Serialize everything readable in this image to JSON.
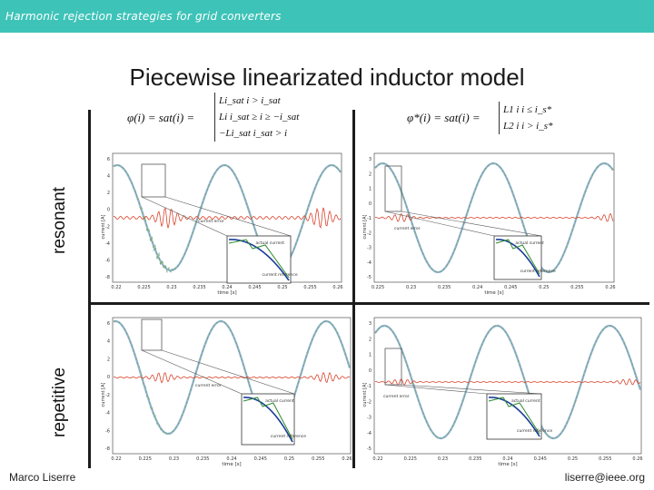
{
  "header": {
    "title": "Harmonic rejection strategies for grid converters"
  },
  "slide": {
    "title": "Piecewise linearizated inductor model"
  },
  "row_labels": {
    "top": "resonant",
    "bottom": "repetitive"
  },
  "formulas": {
    "left_lhs": "φ(i) = sat(i) =",
    "left_cases": [
      "Li_sat    i > i_sat",
      "Li    i_sat ≥ i ≥ −i_sat",
      "−Li_sat    i_sat > i"
    ],
    "right_lhs": "φ*(i) = sat(i) =",
    "right_cases": [
      "L1 i    i ≤ i_s*",
      "L2 i    i > i_s*"
    ]
  },
  "plots": {
    "ylabel": "current [A]",
    "xlabel": "time [s]",
    "annotations": {
      "current_error": "current error",
      "actual_current": "actual current",
      "current_reference": "current reference"
    },
    "tl_xticks": [
      "0.22",
      "0.225",
      "0.23",
      "0.235",
      "0.24",
      "0.245",
      "0.25",
      "0.255",
      "0.26"
    ],
    "tr_xticks": [
      "0.225",
      "0.23",
      "0.235",
      "0.24",
      "0.245",
      "0.25",
      "0.255",
      "0.26"
    ],
    "bl_xticks": [
      "0.22",
      "0.225",
      "0.23",
      "0.235",
      "0.24",
      "0.245",
      "0.25",
      "0.255",
      "0.26"
    ],
    "br_xticks": [
      "0.22",
      "0.225",
      "0.23",
      "0.235",
      "0.24",
      "0.245",
      "0.25",
      "0.255",
      "0.26"
    ],
    "left_yticks": [
      "6",
      "4",
      "2",
      "0",
      "-2",
      "-4",
      "-6",
      "-8"
    ],
    "right_yticks": [
      "3",
      "2",
      "1",
      "0",
      "-1",
      "-2",
      "-3",
      "-4",
      "-5"
    ],
    "colors": {
      "reference": "#8fb2d8",
      "actual": "#79a866",
      "error": "#d9442c",
      "zoom": "#555555"
    }
  },
  "footer": {
    "author": "Marco Liserre",
    "email": "liserre@ieee.org"
  }
}
